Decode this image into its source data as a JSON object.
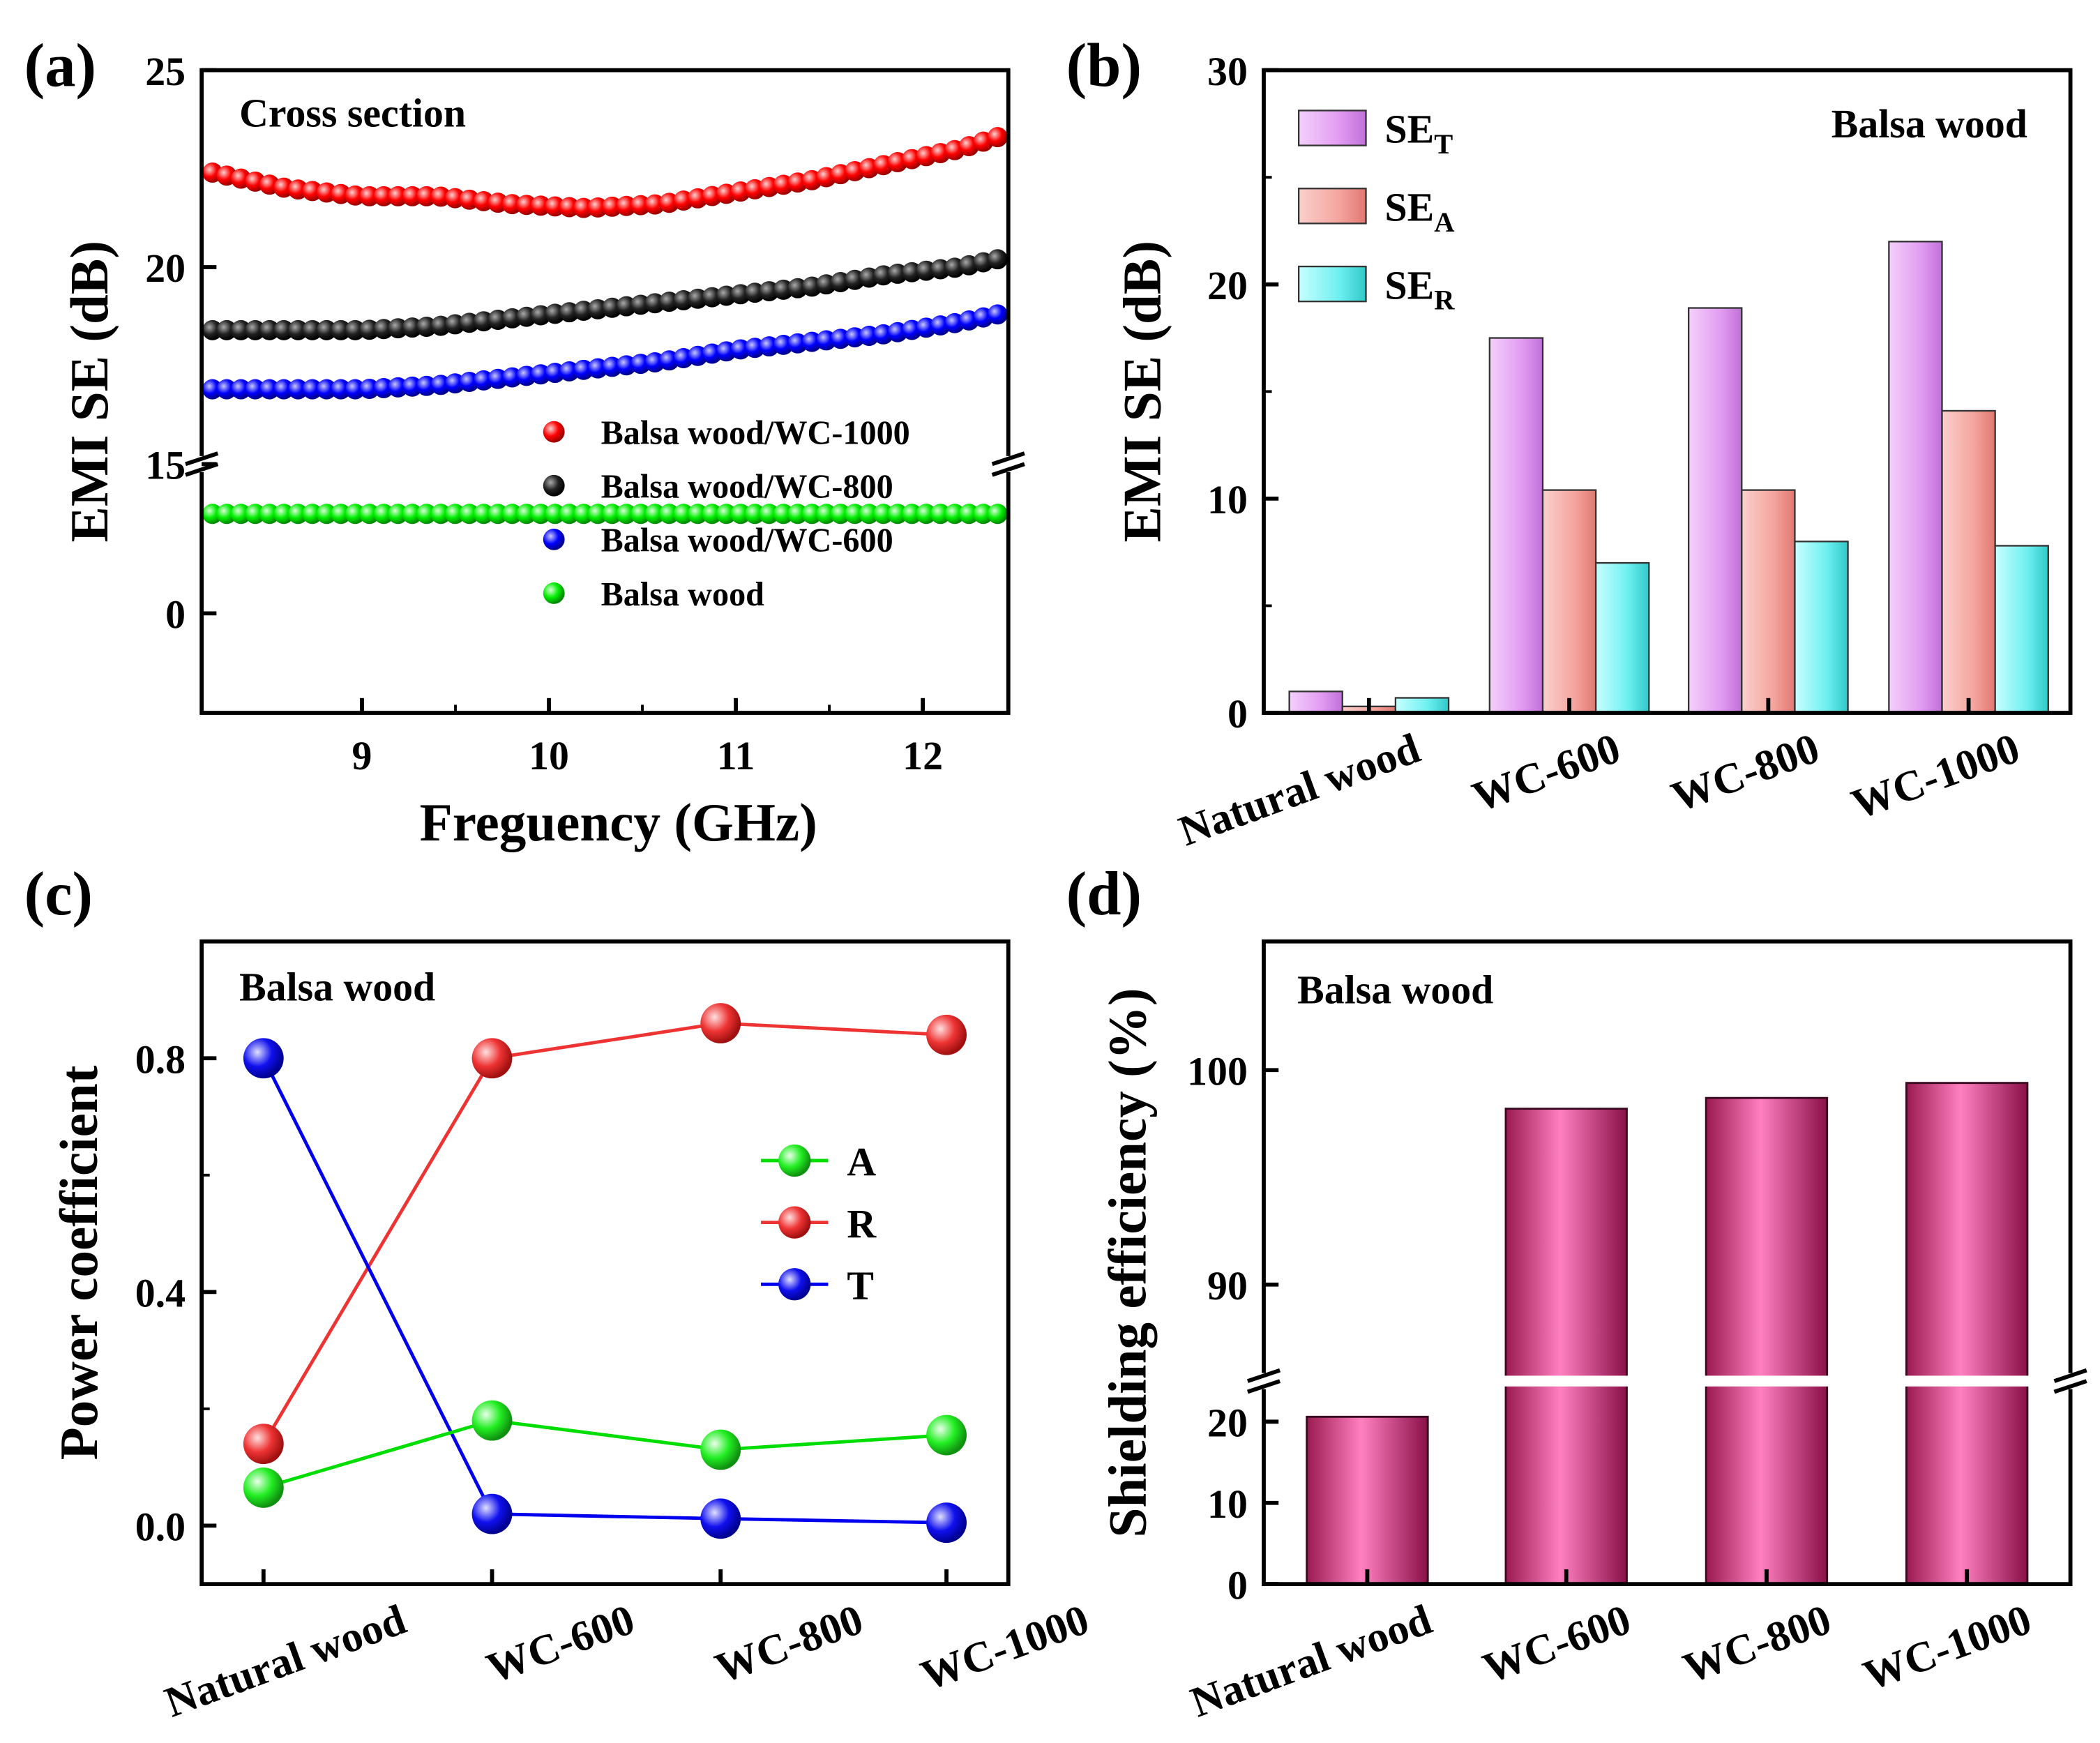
{
  "chart_data": [
    {
      "panel": "(a)",
      "type": "scatter",
      "annotation": "Cross section",
      "xlabel": "Freguency (GHz)",
      "ylabel": "EMI SE (dB)",
      "xlim": [
        8.2,
        12.4
      ],
      "xticks": [
        "9",
        "10",
        "11",
        "12"
      ],
      "yticks_top": [
        "15",
        "20",
        "25"
      ],
      "yticks_bottom": [
        "0"
      ],
      "upper_ylim": [
        15,
        25
      ],
      "lower_ylim": [
        -1,
        1.5
      ],
      "axis_break": "between 15 and 0 on y-axis",
      "series": [
        {
          "name": "Balsa wood/WC-1000",
          "color": "#ff0000",
          "x": [
            8.2,
            8.6,
            9.0,
            9.4,
            9.8,
            10.2,
            10.6,
            11.0,
            11.4,
            11.8,
            12.2,
            12.4
          ],
          "values": [
            22.4,
            22.0,
            21.8,
            21.8,
            21.6,
            21.5,
            21.6,
            21.9,
            22.2,
            22.6,
            23.0,
            23.3
          ]
        },
        {
          "name": "Balsa wood/WC-800",
          "color": "#000000",
          "x": [
            8.2,
            8.6,
            9.0,
            9.4,
            9.8,
            10.2,
            10.6,
            11.0,
            11.4,
            11.8,
            12.2,
            12.4
          ],
          "values": [
            18.4,
            18.4,
            18.4,
            18.5,
            18.7,
            18.9,
            19.1,
            19.3,
            19.5,
            19.8,
            20.0,
            20.2
          ]
        },
        {
          "name": "Balsa wood/WC-600",
          "color": "#0000ff",
          "x": [
            8.2,
            8.6,
            9.0,
            9.4,
            9.8,
            10.2,
            10.6,
            11.0,
            11.4,
            11.8,
            12.2,
            12.4
          ],
          "values": [
            16.9,
            16.9,
            16.9,
            17.0,
            17.2,
            17.4,
            17.6,
            17.9,
            18.1,
            18.3,
            18.6,
            18.8
          ]
        },
        {
          "name": "Balsa wood",
          "color": "#00ee00",
          "x": [
            8.2,
            12.4
          ],
          "values": [
            1.0,
            1.0
          ]
        }
      ]
    },
    {
      "panel": "(b)",
      "type": "bar",
      "annotation": "Balsa wood",
      "ylabel": "EMI SE (dB)",
      "ylim": [
        0,
        30
      ],
      "yticks": [
        "0",
        "10",
        "20",
        "30"
      ],
      "categories": [
        "Natural wood",
        "WC-600",
        "WC-800",
        "WC-1000"
      ],
      "series": [
        {
          "name": "SE",
          "sub": "T",
          "color": "#e29cf2",
          "values": [
            1.0,
            17.5,
            18.9,
            22.0
          ]
        },
        {
          "name": "SE",
          "sub": "A",
          "color": "#f5a49e",
          "values": [
            0.3,
            10.4,
            10.4,
            14.1
          ]
        },
        {
          "name": "SE",
          "sub": "R",
          "color": "#6ef0f0",
          "values": [
            0.7,
            7.0,
            8.0,
            7.8
          ]
        }
      ]
    },
    {
      "panel": "(c)",
      "type": "line",
      "annotation": "Balsa wood",
      "ylabel": "Power coefficient",
      "ylim": [
        -0.1,
        1.0
      ],
      "yticks": [
        "0.0",
        "0.4",
        "0.8"
      ],
      "categories": [
        "Natural wood",
        "WC-600",
        "WC-800",
        "WC-1000"
      ],
      "series": [
        {
          "name": "A",
          "color": "#00dd00",
          "values": [
            0.065,
            0.18,
            0.13,
            0.155
          ]
        },
        {
          "name": "R",
          "color": "#ee3333",
          "values": [
            0.14,
            0.8,
            0.86,
            0.84
          ]
        },
        {
          "name": "T",
          "color": "#0000ee",
          "values": [
            0.8,
            0.02,
            0.012,
            0.005
          ]
        }
      ]
    },
    {
      "panel": "(d)",
      "type": "bar",
      "annotation": "Balsa wood",
      "ylabel": "Shielding efficiency (%)",
      "yticks_top": [
        "90",
        "100"
      ],
      "yticks_bottom": [
        "0",
        "10",
        "20"
      ],
      "upper_ylim": [
        85.5,
        106
      ],
      "lower_ylim": [
        0,
        25
      ],
      "axis_break": "between 20 and 90 on y-axis",
      "categories": [
        "Natural wood",
        "WC-600",
        "WC-800",
        "WC-1000"
      ],
      "values": [
        20.6,
        98.2,
        98.7,
        99.4
      ],
      "color": "#e0508f"
    }
  ]
}
